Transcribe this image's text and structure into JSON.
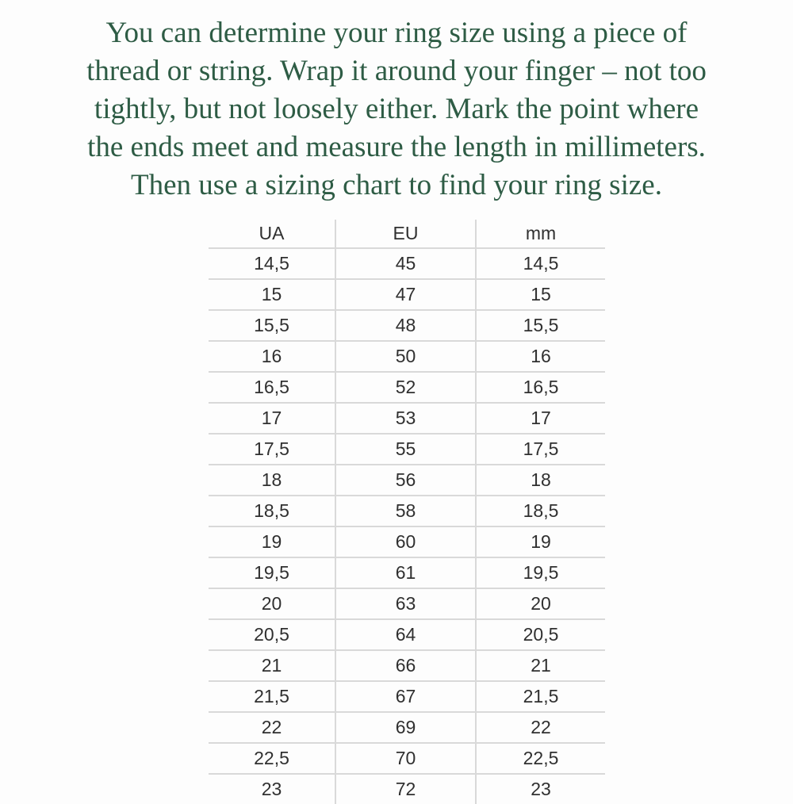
{
  "intro": {
    "lines": [
      "You can determine your ring size using a piece of",
      "thread or string. Wrap it around your finger – not too",
      "tightly, but not loosely either. Mark the point where",
      "the ends meet and measure the length in millimeters.",
      "Then use a sizing chart to find your ring size."
    ],
    "text_color": "#2e5c45"
  },
  "table": {
    "columns": [
      "UA",
      "EU",
      "mm"
    ],
    "rows": [
      [
        "14,5",
        "45",
        "14,5"
      ],
      [
        "15",
        "47",
        "15"
      ],
      [
        "15,5",
        "48",
        "15,5"
      ],
      [
        "16",
        "50",
        "16"
      ],
      [
        "16,5",
        "52",
        "16,5"
      ],
      [
        "17",
        "53",
        "17"
      ],
      [
        "17,5",
        "55",
        "17,5"
      ],
      [
        "18",
        "56",
        "18"
      ],
      [
        "18,5",
        "58",
        "18,5"
      ],
      [
        "19",
        "60",
        "19"
      ],
      [
        "19,5",
        "61",
        "19,5"
      ],
      [
        "20",
        "63",
        "20"
      ],
      [
        "20,5",
        "64",
        "20,5"
      ],
      [
        "21",
        "66",
        "21"
      ],
      [
        "21,5",
        "67",
        "21,5"
      ],
      [
        "22",
        "69",
        "22"
      ],
      [
        "22,5",
        "70",
        "22,5"
      ],
      [
        "23",
        "72",
        "23"
      ]
    ],
    "line_color": "#d9d9d9",
    "text_color": "#303030"
  }
}
